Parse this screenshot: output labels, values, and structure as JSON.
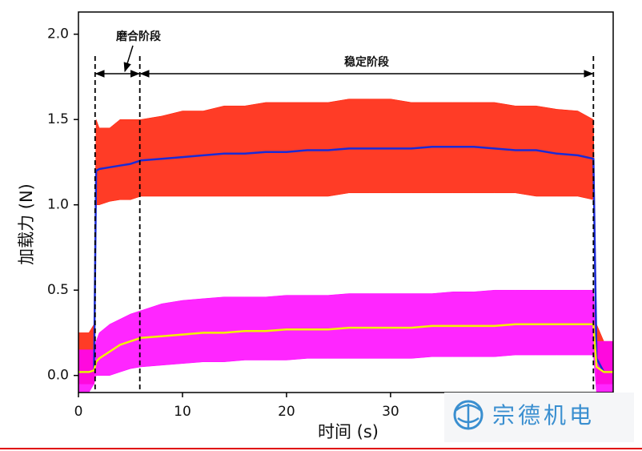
{
  "chart_data": {
    "type": "line",
    "x_label": "时间 (s)",
    "y_label": "加载力 (N)",
    "xlim": [
      0,
      51.4
    ],
    "ylim": [
      -0.1,
      2.13
    ],
    "xticks": [
      0,
      10,
      20,
      30
    ],
    "yticks": [
      {
        "value": 0,
        "label": "0.0"
      },
      0.5,
      {
        "value": 1,
        "label": "1.0"
      },
      1.5,
      {
        "value": 2,
        "label": "2.0"
      }
    ],
    "phase_lines": [
      1.6,
      5.9,
      49.5
    ],
    "annotations": [
      "磨合阶段",
      "稳定阶段"
    ],
    "x": [
      0,
      1,
      1.5,
      1.7,
      2,
      3,
      4,
      5,
      6,
      8,
      10,
      12,
      14,
      16,
      18,
      20,
      22,
      24,
      26,
      28,
      30,
      32,
      34,
      36,
      38,
      40,
      42,
      44,
      46,
      48,
      49.5,
      49.8,
      50.5,
      51.4
    ],
    "bands": [
      {
        "color": "#ff1a00",
        "upper": [
          0.25,
          0.25,
          0.3,
          1.5,
          1.45,
          1.45,
          1.5,
          1.5,
          1.5,
          1.52,
          1.55,
          1.55,
          1.58,
          1.58,
          1.6,
          1.6,
          1.6,
          1.6,
          1.62,
          1.62,
          1.62,
          1.6,
          1.6,
          1.6,
          1.6,
          1.6,
          1.58,
          1.58,
          1.56,
          1.55,
          1.5,
          0.3,
          0.2,
          0.2
        ],
        "lower": [
          -0.05,
          -0.05,
          -0.05,
          1.0,
          1.0,
          1.02,
          1.03,
          1.03,
          1.05,
          1.05,
          1.05,
          1.05,
          1.05,
          1.05,
          1.05,
          1.05,
          1.05,
          1.05,
          1.07,
          1.07,
          1.07,
          1.07,
          1.07,
          1.07,
          1.07,
          1.07,
          1.07,
          1.05,
          1.05,
          1.05,
          1.03,
          -0.05,
          -0.05,
          -0.05
        ]
      },
      {
        "color": "#ff00ff",
        "upper": [
          0.15,
          0.15,
          0.15,
          0.2,
          0.25,
          0.3,
          0.33,
          0.36,
          0.38,
          0.42,
          0.44,
          0.45,
          0.46,
          0.46,
          0.46,
          0.47,
          0.47,
          0.47,
          0.48,
          0.48,
          0.48,
          0.48,
          0.48,
          0.49,
          0.49,
          0.5,
          0.5,
          0.5,
          0.5,
          0.5,
          0.5,
          0.2,
          0.2,
          0.2
        ],
        "lower": [
          -0.1,
          -0.1,
          -0.05,
          0.0,
          0.0,
          0.0,
          0.02,
          0.04,
          0.05,
          0.06,
          0.07,
          0.08,
          0.08,
          0.09,
          0.09,
          0.09,
          0.1,
          0.1,
          0.1,
          0.1,
          0.1,
          0.1,
          0.11,
          0.11,
          0.11,
          0.11,
          0.12,
          0.12,
          0.12,
          0.12,
          0.12,
          -0.1,
          -0.1,
          -0.1
        ]
      }
    ],
    "series": [
      {
        "color": "#1a2bd6",
        "values": [
          0.02,
          0.02,
          0.03,
          1.2,
          1.21,
          1.22,
          1.23,
          1.24,
          1.26,
          1.27,
          1.28,
          1.29,
          1.3,
          1.3,
          1.31,
          1.31,
          1.32,
          1.32,
          1.33,
          1.33,
          1.33,
          1.33,
          1.34,
          1.34,
          1.34,
          1.33,
          1.32,
          1.32,
          1.3,
          1.29,
          1.27,
          0.1,
          0.02,
          0.02
        ]
      },
      {
        "color": "#f2f200",
        "values": [
          0.02,
          0.02,
          0.03,
          0.08,
          0.1,
          0.14,
          0.18,
          0.2,
          0.22,
          0.23,
          0.24,
          0.25,
          0.25,
          0.26,
          0.26,
          0.27,
          0.27,
          0.27,
          0.28,
          0.28,
          0.28,
          0.28,
          0.29,
          0.29,
          0.29,
          0.29,
          0.3,
          0.3,
          0.3,
          0.3,
          0.3,
          0.05,
          0.02,
          0.02
        ]
      }
    ],
    "watermark": "宗德机电"
  }
}
